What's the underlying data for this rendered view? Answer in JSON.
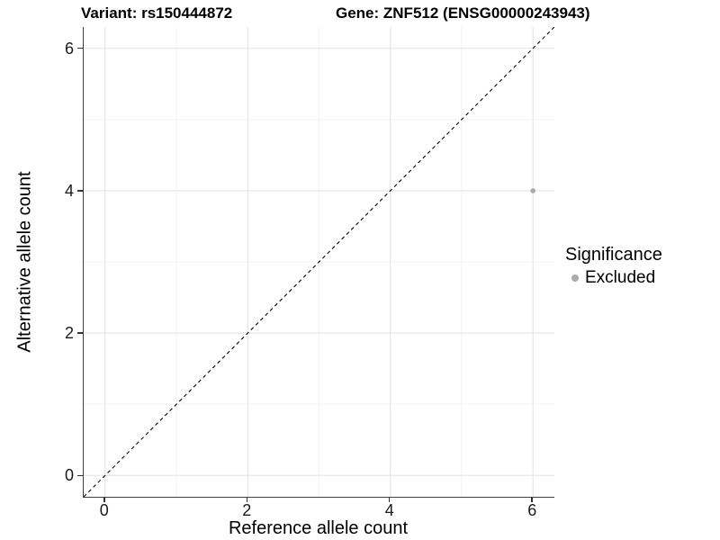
{
  "header": {
    "variant_title": "Variant: rs150444872",
    "gene_title": "Gene: ZNF512 (ENSG00000243943)"
  },
  "axes": {
    "x_title": "Reference allele count",
    "y_title": "Alternative allele count"
  },
  "legend": {
    "title": "Significance",
    "items": [
      {
        "label": "Excluded",
        "color": "#aaaaaa"
      }
    ]
  },
  "chart_data": {
    "type": "scatter",
    "titles": [
      "Variant: rs150444872",
      "Gene: ZNF512 (ENSG00000243943)"
    ],
    "xlabel": "Reference allele count",
    "ylabel": "Alternative allele count",
    "xlim": [
      -0.3,
      6.3
    ],
    "ylim": [
      -0.3,
      6.3
    ],
    "x_ticks": [
      0,
      2,
      4,
      6
    ],
    "y_ticks": [
      0,
      2,
      4,
      6
    ],
    "x_minor_ticks": [
      1,
      3,
      5
    ],
    "y_minor_ticks": [
      1,
      3,
      5
    ],
    "grid": "major and minor, light gray on white",
    "legend_position": "right",
    "series": [
      {
        "name": "Excluded",
        "color": "#aaaaaa",
        "points": [
          {
            "x": 6,
            "y": 4
          }
        ]
      }
    ],
    "reference_line": {
      "type": "identity y=x",
      "style": "dashed",
      "color": "#000000"
    }
  },
  "style": {
    "grid_major_color": "#e7e7e7",
    "grid_minor_color": "#f3f3f3",
    "axis_line_color": "#404040",
    "tick_mark_color": "#333333",
    "point_radius": 2.8,
    "legend_dot_size": 8,
    "background": "#ffffff"
  }
}
